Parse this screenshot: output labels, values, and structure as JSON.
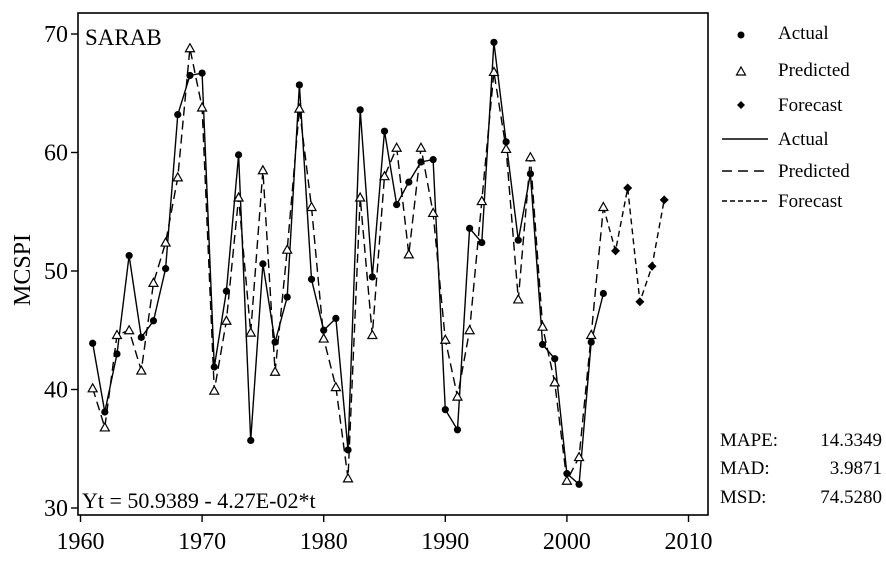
{
  "chart_data": {
    "type": "line",
    "title": "SARAB",
    "ylabel": "MCSPI",
    "xlabel": "",
    "xlim": [
      1960,
      2010
    ],
    "ylim": [
      30,
      72
    ],
    "xticks": [
      1960,
      1970,
      1980,
      1990,
      2000,
      2010
    ],
    "yticks": [
      30,
      40,
      50,
      60,
      70
    ],
    "grid": false,
    "legend_position": "outside-top-right",
    "equation": "Yt = 50.9389 - 4.27E-02*t",
    "series": [
      {
        "name": "Actual",
        "style": "solid",
        "marker": "circle",
        "x": [
          1961,
          1962,
          1963,
          1964,
          1965,
          1966,
          1967,
          1968,
          1969,
          1970,
          1971,
          1972,
          1973,
          1974,
          1975,
          1976,
          1977,
          1978,
          1979,
          1980,
          1981,
          1982,
          1983,
          1984,
          1985,
          1986,
          1987,
          1988,
          1989,
          1990,
          1991,
          1992,
          1993,
          1994,
          1995,
          1996,
          1997,
          1998,
          1999,
          2000,
          2001,
          2002,
          2003
        ],
        "values": [
          43.9,
          38.1,
          43.0,
          51.3,
          44.4,
          45.8,
          50.2,
          63.2,
          66.5,
          66.7,
          41.9,
          48.3,
          59.8,
          35.7,
          50.6,
          44.0,
          47.8,
          65.7,
          49.3,
          45.0,
          46.0,
          34.9,
          63.6,
          49.5,
          61.8,
          55.6,
          57.5,
          59.2,
          59.4,
          38.3,
          36.6,
          53.6,
          52.4,
          69.3,
          60.9,
          52.6,
          58.2,
          43.8,
          42.6,
          32.9,
          32.0,
          44.0,
          48.1
        ]
      },
      {
        "name": "Predicted",
        "style": "dashed",
        "marker": "triangle-open",
        "x": [
          1961,
          1962,
          1963,
          1964,
          1965,
          1966,
          1967,
          1968,
          1969,
          1970,
          1971,
          1972,
          1973,
          1974,
          1975,
          1976,
          1977,
          1978,
          1979,
          1980,
          1981,
          1982,
          1983,
          1984,
          1985,
          1986,
          1987,
          1988,
          1989,
          1990,
          1991,
          1992,
          1993,
          1994,
          1995,
          1996,
          1997,
          1998,
          1999,
          2000,
          2001,
          2002,
          2003
        ],
        "values": [
          40.1,
          36.8,
          44.6,
          45.0,
          41.6,
          49.0,
          52.4,
          57.9,
          68.8,
          63.8,
          39.9,
          45.8,
          56.2,
          44.8,
          58.5,
          41.5,
          51.8,
          63.7,
          55.4,
          44.3,
          40.2,
          32.5,
          56.2,
          44.6,
          58.0,
          60.4,
          51.4,
          60.4,
          54.9,
          44.2,
          39.4,
          45.0,
          55.9,
          66.8,
          60.3,
          47.6,
          59.6,
          45.3,
          40.6,
          32.3,
          34.3,
          44.6,
          55.4
        ]
      },
      {
        "name": "Forecast",
        "style": "dashed-fine",
        "marker": "diamond-filled",
        "x": [
          2004,
          2005,
          2006,
          2007,
          2008
        ],
        "values": [
          51.7,
          57.0,
          47.4,
          50.4,
          56.0
        ]
      }
    ],
    "legend": {
      "marker_entries": [
        "Actual",
        "Predicted",
        "Forecast"
      ],
      "line_entries": [
        "Actual",
        "Predicted",
        "Forecast"
      ]
    },
    "stats": [
      {
        "label": "MAPE:",
        "value": "14.3349"
      },
      {
        "label": "MAD:",
        "value": "3.9871"
      },
      {
        "label": "MSD:",
        "value": "74.5280"
      }
    ]
  }
}
